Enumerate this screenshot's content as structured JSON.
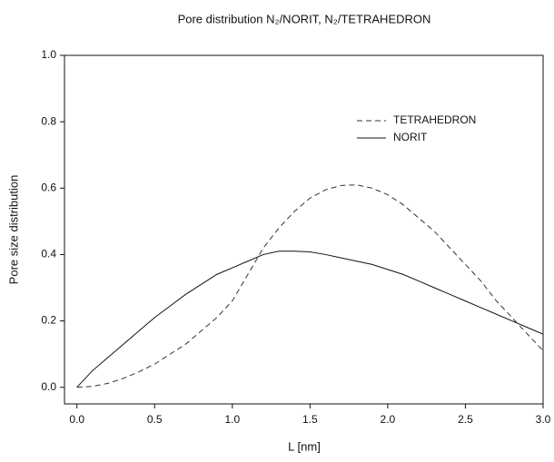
{
  "chart_data": {
    "type": "line",
    "title": "Pore distribution N₂/NORIT, N₂/TETRAHEDRON",
    "x_label": "L [nm]",
    "y_label": "Pore size distribution",
    "x": [
      0,
      0.1,
      0.2,
      0.3,
      0.4,
      0.5,
      0.6,
      0.7,
      0.8,
      0.9,
      1.0,
      1.1,
      1.2,
      1.3,
      1.4,
      1.5,
      1.6,
      1.7,
      1.8,
      1.9,
      2.0,
      2.1,
      2.2,
      2.3,
      2.4,
      2.5,
      2.6,
      2.7,
      2.8,
      2.9,
      3.0
    ],
    "series": [
      {
        "name": "TETRAHEDRON",
        "color": "#333333",
        "dashed": true,
        "values": [
          0,
          0.003,
          0.012,
          0.027,
          0.047,
          0.07,
          0.1,
          0.13,
          0.17,
          0.21,
          0.26,
          0.34,
          0.42,
          0.48,
          0.53,
          0.57,
          0.595,
          0.608,
          0.61,
          0.6,
          0.58,
          0.55,
          0.51,
          0.47,
          0.42,
          0.37,
          0.32,
          0.26,
          0.21,
          0.16,
          0.11
        ]
      },
      {
        "name": "NORIT",
        "color": "#111111",
        "dashed": false,
        "values": [
          0,
          0.05,
          0.09,
          0.13,
          0.17,
          0.21,
          0.245,
          0.28,
          0.31,
          0.34,
          0.36,
          0.38,
          0.4,
          0.41,
          0.41,
          0.408,
          0.4,
          0.39,
          0.38,
          0.37,
          0.355,
          0.34,
          0.32,
          0.3,
          0.28,
          0.26,
          0.24,
          0.22,
          0.2,
          0.18,
          0.16
        ]
      }
    ],
    "xlim": [
      -0.08,
      3.0
    ],
    "ylim": [
      -0.05,
      1.0
    ],
    "xticks": [
      {
        "value": 0,
        "label": "0.0"
      },
      {
        "value": 0.5,
        "label": "0.5"
      },
      {
        "value": 1,
        "label": "1.0"
      },
      {
        "value": 1.5,
        "label": "1.5"
      },
      {
        "value": 2,
        "label": "2.0"
      },
      {
        "value": 2.5,
        "label": "2.5"
      },
      {
        "value": 3,
        "label": "3.0"
      }
    ],
    "yticks": [
      {
        "value": 0,
        "label": "0.0"
      },
      {
        "value": 0.2,
        "label": "0.2"
      },
      {
        "value": 0.4,
        "label": "0.4"
      },
      {
        "value": 0.6,
        "label": "0.6"
      },
      {
        "value": 0.8,
        "label": "0.8"
      },
      {
        "value": 1,
        "label": "1.0"
      }
    ],
    "grid": false
  }
}
